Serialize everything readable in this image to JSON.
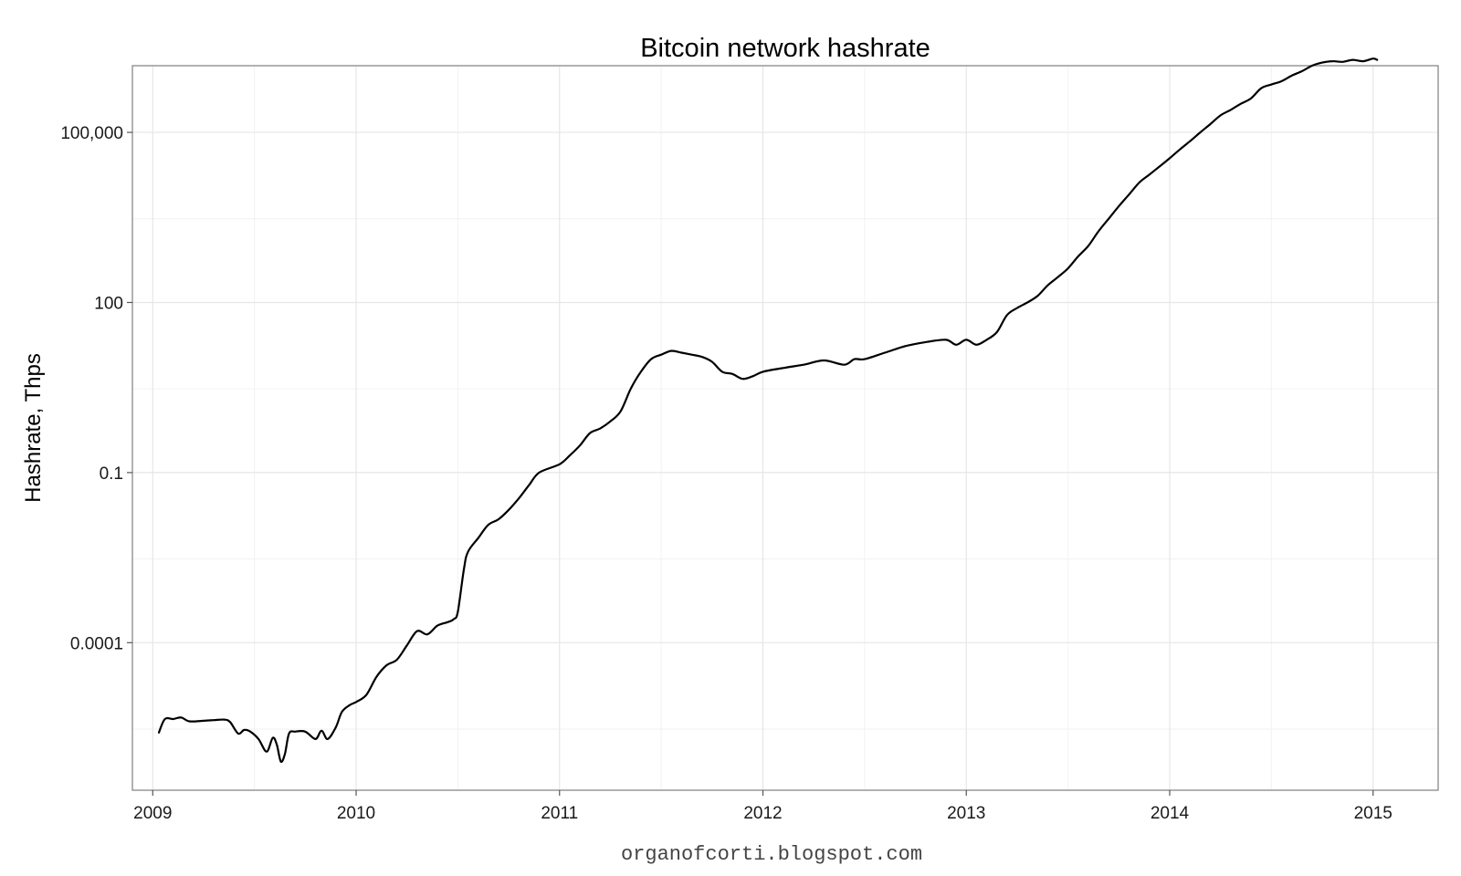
{
  "chart_data": {
    "type": "line",
    "title": "Bitcoin network hashrate",
    "xlabel": "",
    "ylabel": "Hashrate, Thps",
    "credit": "organofcorti.blogspot.com",
    "y_scale": "log10",
    "grid": true,
    "xlim": [
      2008.9,
      2015.32
    ],
    "ylim": [
      2.5e-07,
      1500000
    ],
    "x_ticks": [
      {
        "value": 2009,
        "label": "2009"
      },
      {
        "value": 2010,
        "label": "2010"
      },
      {
        "value": 2011,
        "label": "2011"
      },
      {
        "value": 2012,
        "label": "2012"
      },
      {
        "value": 2013,
        "label": "2013"
      },
      {
        "value": 2014,
        "label": "2014"
      },
      {
        "value": 2015,
        "label": "2015"
      }
    ],
    "y_ticks": [
      {
        "value": 0.0001,
        "label": "0.0001"
      },
      {
        "value": 0.1,
        "label": "0.1"
      },
      {
        "value": 100,
        "label": "100"
      },
      {
        "value": 100000,
        "label": "100,000"
      }
    ],
    "y_minor_ticks": [
      3e-06,
      0.003,
      3,
      3000
    ],
    "series": [
      {
        "line_color": "#000000",
        "x": [
          2009.03,
          2009.06,
          2009.1,
          2009.14,
          2009.18,
          2009.25,
          2009.3,
          2009.35,
          2009.38,
          2009.42,
          2009.45,
          2009.48,
          2009.52,
          2009.56,
          2009.59,
          2009.61,
          2009.63,
          2009.65,
          2009.67,
          2009.7,
          2009.75,
          2009.8,
          2009.83,
          2009.86,
          2009.9,
          2009.93,
          2009.97,
          2010.0,
          2010.05,
          2010.1,
          2010.15,
          2010.2,
          2010.25,
          2010.3,
          2010.35,
          2010.4,
          2010.45,
          2010.48,
          2010.5,
          2010.53,
          2010.55,
          2010.6,
          2010.65,
          2010.7,
          2010.75,
          2010.8,
          2010.85,
          2010.9,
          2011.0,
          2011.05,
          2011.1,
          2011.15,
          2011.2,
          2011.25,
          2011.3,
          2011.35,
          2011.4,
          2011.45,
          2011.5,
          2011.55,
          2011.6,
          2011.65,
          2011.7,
          2011.75,
          2011.8,
          2011.85,
          2011.9,
          2011.95,
          2012.0,
          2012.1,
          2012.2,
          2012.3,
          2012.4,
          2012.45,
          2012.5,
          2012.6,
          2012.7,
          2012.8,
          2012.9,
          2012.95,
          2013.0,
          2013.05,
          2013.1,
          2013.15,
          2013.2,
          2013.25,
          2013.3,
          2013.35,
          2013.4,
          2013.45,
          2013.5,
          2013.55,
          2013.6,
          2013.65,
          2013.7,
          2013.75,
          2013.8,
          2013.85,
          2013.9,
          2013.95,
          2014.0,
          2014.05,
          2014.1,
          2014.15,
          2014.2,
          2014.25,
          2014.3,
          2014.35,
          2014.4,
          2014.45,
          2014.5,
          2014.55,
          2014.6,
          2014.65,
          2014.7,
          2014.75,
          2014.8,
          2014.85,
          2014.9,
          2014.95,
          2015.0,
          2015.02
        ],
        "y": [
          2.6e-06,
          4.5e-06,
          4.5e-06,
          4.8e-06,
          4.1e-06,
          4.2e-06,
          4.3e-06,
          4.4e-06,
          4e-06,
          2.5e-06,
          2.9e-06,
          2.7e-06,
          2e-06,
          1.2e-06,
          2.1e-06,
          1.6e-06,
          8e-07,
          1.1e-06,
          2.5e-06,
          2.7e-06,
          2.7e-06,
          2e-06,
          2.8e-06,
          2e-06,
          3.2e-06,
          6e-06,
          8e-06,
          9e-06,
          1.2e-05,
          2.5e-05,
          4e-05,
          5e-05,
          9e-05,
          0.00016,
          0.00014,
          0.0002,
          0.00023,
          0.00026,
          0.00035,
          0.002,
          0.004,
          0.007,
          0.012,
          0.015,
          0.022,
          0.035,
          0.06,
          0.1,
          0.14,
          0.2,
          0.3,
          0.5,
          0.6,
          0.8,
          1.2,
          3,
          6,
          10,
          12,
          14,
          13,
          12,
          11,
          9,
          6,
          5.5,
          4.5,
          5,
          6,
          7,
          8,
          9.5,
          8,
          10,
          10,
          13,
          17,
          20,
          22,
          18,
          22,
          18,
          22,
          30,
          60,
          80,
          100,
          130,
          200,
          280,
          400,
          650,
          1000,
          1800,
          3000,
          5000,
          8000,
          13000,
          18000,
          25000,
          35000,
          50000,
          70000,
          100000,
          140000,
          200000,
          250000,
          320000,
          400000,
          600000,
          700000,
          800000,
          1000000,
          1200000,
          1500000,
          1700000,
          1800000,
          1750000,
          1900000,
          1800000,
          2000000,
          1900000
        ]
      }
    ]
  }
}
